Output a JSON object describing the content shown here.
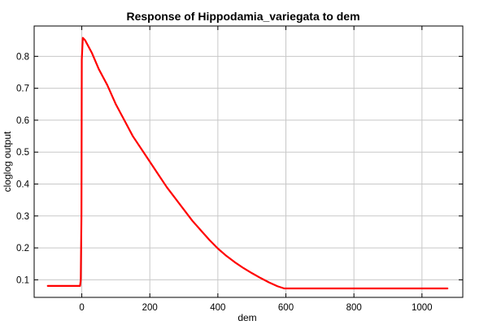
{
  "chart_data": {
    "type": "line",
    "title": "Response of Hippodamia_variegata to dem",
    "xlabel": "dem",
    "ylabel": "cloglog output",
    "xlim": [
      -140,
      1120
    ],
    "ylim": [
      0.045,
      0.895
    ],
    "xticks": [
      0,
      200,
      400,
      600,
      800,
      1000
    ],
    "yticks": [
      0.1,
      0.2,
      0.3,
      0.4,
      0.5,
      0.6,
      0.7,
      0.8
    ],
    "grid": true,
    "series": [
      {
        "color": "#ff0000",
        "points": [
          [
            -100,
            0.081
          ],
          [
            -5,
            0.081
          ],
          [
            -3,
            0.1
          ],
          [
            -1,
            0.3
          ],
          [
            0,
            0.79
          ],
          [
            3,
            0.858
          ],
          [
            10,
            0.85
          ],
          [
            30,
            0.81
          ],
          [
            50,
            0.76
          ],
          [
            75,
            0.71
          ],
          [
            100,
            0.65
          ],
          [
            125,
            0.6
          ],
          [
            150,
            0.55
          ],
          [
            175,
            0.51
          ],
          [
            200,
            0.47
          ],
          [
            225,
            0.43
          ],
          [
            250,
            0.39
          ],
          [
            275,
            0.355
          ],
          [
            300,
            0.32
          ],
          [
            325,
            0.285
          ],
          [
            350,
            0.255
          ],
          [
            375,
            0.225
          ],
          [
            400,
            0.198
          ],
          [
            425,
            0.175
          ],
          [
            450,
            0.155
          ],
          [
            475,
            0.137
          ],
          [
            500,
            0.121
          ],
          [
            525,
            0.106
          ],
          [
            550,
            0.092
          ],
          [
            575,
            0.08
          ],
          [
            595,
            0.073
          ],
          [
            1075,
            0.073
          ]
        ]
      }
    ]
  }
}
